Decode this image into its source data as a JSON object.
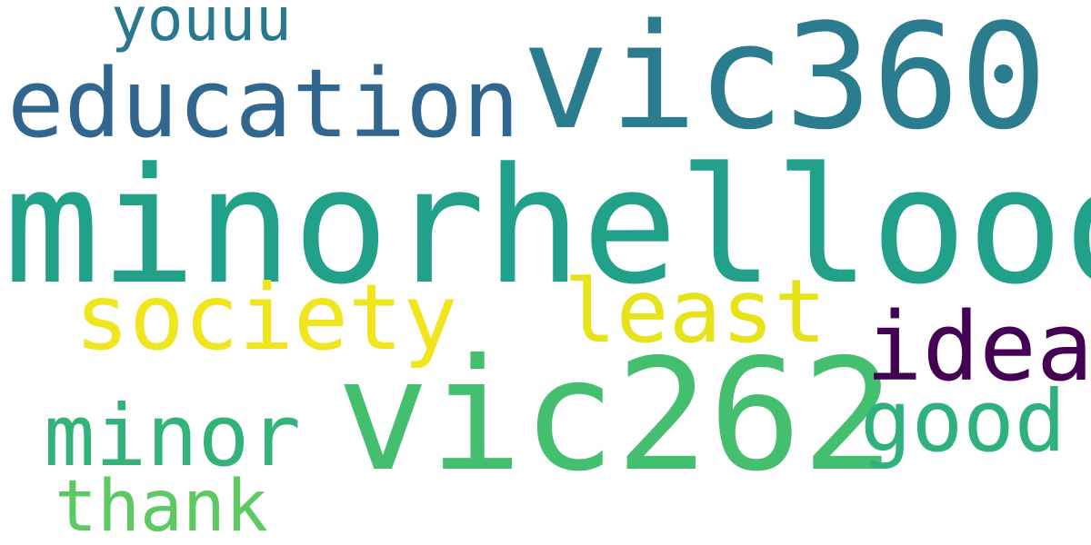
{
  "word_cloud": {
    "words": [
      {
        "text": "minorhellooo",
        "color": "#21a08a"
      },
      {
        "text": "vic360",
        "color": "#2c7c8f"
      },
      {
        "text": "vic262",
        "color": "#44bf70"
      },
      {
        "text": "education",
        "color": "#31668e"
      },
      {
        "text": "society",
        "color": "#f1e51d"
      },
      {
        "text": "least",
        "color": "#e6e419"
      },
      {
        "text": "idea",
        "color": "#440154"
      },
      {
        "text": "minor",
        "color": "#33b37a"
      },
      {
        "text": "good",
        "color": "#2eb17c"
      },
      {
        "text": "thank",
        "color": "#5ec962"
      },
      {
        "text": "youuu",
        "color": "#2a788e"
      }
    ]
  }
}
